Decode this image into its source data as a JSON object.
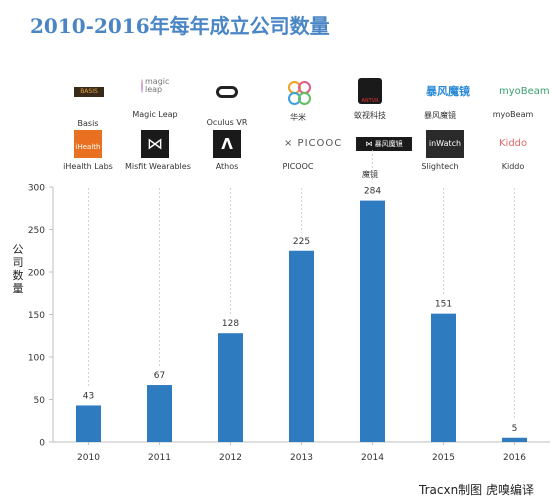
{
  "title": "2010-2016年每年成立公司数量",
  "footer": "Tracxn制图  虎嗅编译",
  "logos": [
    {
      "name": "Basis",
      "icon": "basis-logo",
      "logo_text": "BASIS"
    },
    {
      "name": "Magic Leap",
      "icon": "magic-leap-logo",
      "logo_text": "magic leap"
    },
    {
      "name": "Oculus VR",
      "icon": "oculus-logo"
    },
    {
      "name": "华米",
      "icon": "huami-logo"
    },
    {
      "name": "蚁视科技",
      "icon": "antvr-logo",
      "logo_text": "ANTVR"
    },
    {
      "name": "暴风魔镜",
      "icon": "baofeng-logo",
      "logo_text": "暴风魔镜"
    },
    {
      "name": "myoBeam",
      "icon": "myobeam-logo",
      "logo_text": "myoBeam"
    },
    {
      "name": "iHealth Labs",
      "icon": "ihealth-logo",
      "logo_text": "iHealth"
    },
    {
      "name": "Misfit Wearables",
      "icon": "misfit-logo"
    },
    {
      "name": "Athos",
      "icon": "athos-logo"
    },
    {
      "name": "PICOOC",
      "icon": "picooc-logo",
      "logo_text": "PICOOC"
    },
    {
      "name": "魔镜",
      "icon": "mojing-logo",
      "logo_text": "暴风魔镜"
    },
    {
      "name": "Slightech",
      "icon": "slightech-logo",
      "logo_text": "inWatch"
    },
    {
      "name": "Kiddo",
      "icon": "kiddo-logo",
      "logo_text": "Kiddo"
    }
  ],
  "colors": {
    "bar": "#2f7bbf",
    "axis": "#bfbfbf",
    "title": "#4a86c5"
  },
  "chart_data": {
    "type": "bar",
    "categories": [
      "2010",
      "2011",
      "2012",
      "2013",
      "2014",
      "2015",
      "2016"
    ],
    "values": [
      43,
      67,
      128,
      225,
      284,
      151,
      5
    ],
    "title": "2010-2016年每年成立公司数量",
    "xlabel": "",
    "ylabel": "公司数量",
    "ylim": [
      0,
      300
    ],
    "yticks": [
      0,
      50,
      100,
      150,
      200,
      250,
      300
    ],
    "grid": false,
    "data_labels": true
  }
}
